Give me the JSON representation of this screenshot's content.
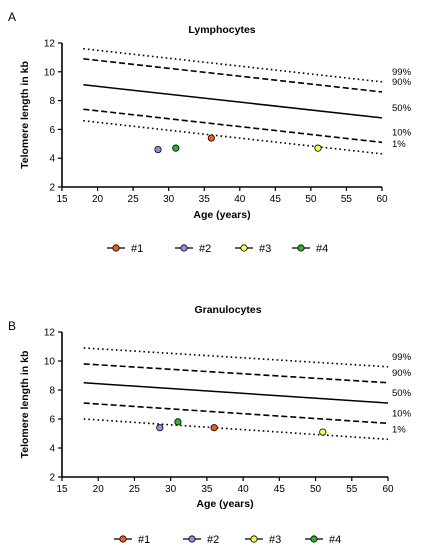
{
  "colors": {
    "#1": "#ef5b22",
    "#2": "#8f8fe6",
    "#3": "#fafa55",
    "#4": "#2db02d"
  },
  "legend_entries": [
    "#1",
    "#2",
    "#3",
    "#4"
  ],
  "chart_data": [
    {
      "panel_label": "A",
      "type": "line",
      "title": "Lymphocytes",
      "xlabel": "Age (years)",
      "ylabel": "Telomere length in kb",
      "xlim": [
        15,
        60
      ],
      "ylim": [
        2,
        12
      ],
      "xticks": [
        15,
        20,
        25,
        30,
        35,
        40,
        45,
        50,
        55,
        60
      ],
      "yticks": [
        2,
        4,
        6,
        8,
        10,
        12
      ],
      "grid": false,
      "legend_position": "bottom",
      "percentile_lines": [
        {
          "name": "99%",
          "style": "dotted",
          "x": [
            18,
            60
          ],
          "y": [
            11.6,
            9.3
          ]
        },
        {
          "name": "90%",
          "style": "dashed",
          "x": [
            18,
            60
          ],
          "y": [
            10.9,
            8.6
          ]
        },
        {
          "name": "50%",
          "style": "solid",
          "x": [
            18,
            60
          ],
          "y": [
            9.1,
            6.8
          ]
        },
        {
          "name": "10%",
          "style": "dashed",
          "x": [
            18,
            60
          ],
          "y": [
            7.4,
            5.1
          ]
        },
        {
          "name": "1%",
          "style": "dotted",
          "x": [
            18,
            60
          ],
          "y": [
            6.6,
            4.3
          ]
        }
      ],
      "series": [
        {
          "name": "#1",
          "x": [
            36
          ],
          "y": [
            5.4
          ]
        },
        {
          "name": "#2",
          "x": [
            28.5
          ],
          "y": [
            4.6
          ]
        },
        {
          "name": "#3",
          "x": [
            51
          ],
          "y": [
            4.7
          ]
        },
        {
          "name": "#4",
          "x": [
            31
          ],
          "y": [
            4.7
          ]
        }
      ]
    },
    {
      "panel_label": "B",
      "type": "line",
      "title": "Granulocytes",
      "xlabel": "Age (years)",
      "ylabel": "Telomere length in kb",
      "xlim": [
        15,
        60
      ],
      "ylim": [
        2,
        12
      ],
      "xticks": [
        15,
        20,
        25,
        30,
        35,
        40,
        45,
        50,
        55,
        60
      ],
      "yticks": [
        2,
        4,
        6,
        8,
        10,
        12
      ],
      "grid": false,
      "legend_position": "bottom",
      "percentile_lines": [
        {
          "name": "99%",
          "style": "dotted",
          "x": [
            18,
            60
          ],
          "y": [
            10.9,
            9.6
          ]
        },
        {
          "name": "90%",
          "style": "dashed",
          "x": [
            18,
            60
          ],
          "y": [
            9.8,
            8.5
          ]
        },
        {
          "name": "50%",
          "style": "solid",
          "x": [
            18,
            60
          ],
          "y": [
            8.5,
            7.1
          ]
        },
        {
          "name": "10%",
          "style": "dashed",
          "x": [
            18,
            60
          ],
          "y": [
            7.1,
            5.7
          ]
        },
        {
          "name": "1%",
          "style": "dotted",
          "x": [
            18,
            60
          ],
          "y": [
            6.0,
            4.6
          ]
        }
      ],
      "series": [
        {
          "name": "#1",
          "x": [
            36
          ],
          "y": [
            5.4
          ]
        },
        {
          "name": "#2",
          "x": [
            28.5
          ],
          "y": [
            5.4
          ]
        },
        {
          "name": "#3",
          "x": [
            51
          ],
          "y": [
            5.1
          ]
        },
        {
          "name": "#4",
          "x": [
            31
          ],
          "y": [
            5.8
          ]
        }
      ]
    }
  ]
}
